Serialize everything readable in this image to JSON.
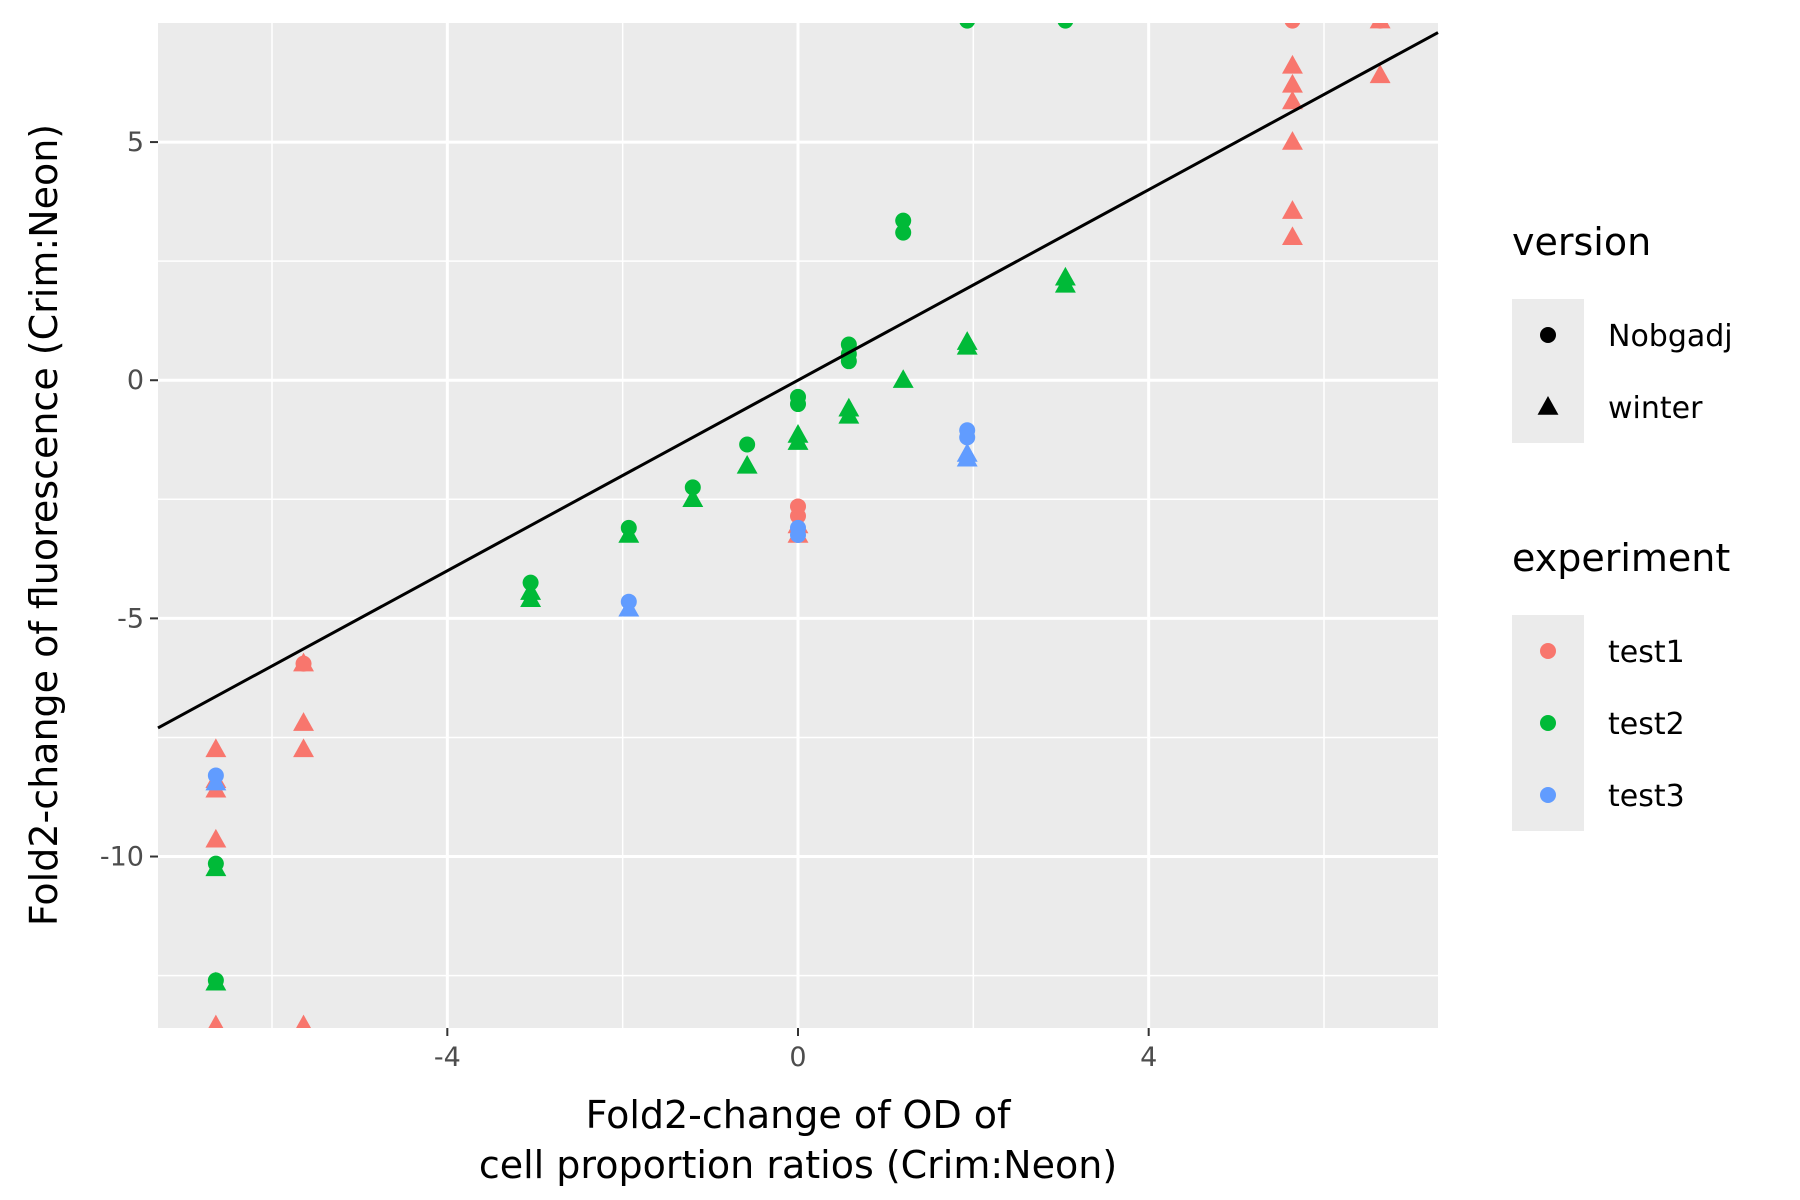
{
  "chart_data": {
    "type": "scatter",
    "xlabel_line1": "Fold2-change of OD of",
    "xlabel_line2": "cell proportion ratios (Crim:Neon)",
    "ylabel": "Fold2-change of fluorescence (Crim:Neon)",
    "xlim": [
      -7.3,
      7.3
    ],
    "ylim": [
      -13.6,
      7.5
    ],
    "x_ticks": [
      -4,
      0,
      4
    ],
    "x_tick_labels": [
      "-4",
      "0",
      "4"
    ],
    "y_ticks": [
      -10,
      -5,
      0,
      5
    ],
    "y_tick_labels": [
      "-10",
      "-5",
      "0",
      "5"
    ],
    "x_minor": [
      -6,
      -2,
      2,
      6
    ],
    "y_minor": [
      -12.5,
      -7.5,
      -2.5,
      2.5
    ],
    "grid": true,
    "background": "#ebebeb",
    "reference_line": {
      "slope": 1,
      "intercept": 0,
      "color": "#000000"
    },
    "legend_placement": "right",
    "legends": [
      {
        "title": "version",
        "kind": "shape",
        "entries": [
          {
            "label": "Nobgadj",
            "shape": "circle"
          },
          {
            "label": "winter",
            "shape": "triangle"
          }
        ]
      },
      {
        "title": "experiment",
        "kind": "color",
        "entries": [
          {
            "label": "test1",
            "color": "#f8766d"
          },
          {
            "label": "test2",
            "color": "#00ba38"
          },
          {
            "label": "test3",
            "color": "#619cff"
          }
        ]
      }
    ],
    "points": [
      {
        "x": 5.64,
        "y": 7.55,
        "experiment": "test1",
        "version": "Nobgadj"
      },
      {
        "x": 6.64,
        "y": 7.55,
        "experiment": "test1",
        "version": "Nobgadj"
      },
      {
        "x": 6.64,
        "y": 7.55,
        "experiment": "test1",
        "version": "winter"
      },
      {
        "x": 5.64,
        "y": 6.6,
        "experiment": "test1",
        "version": "winter"
      },
      {
        "x": 5.64,
        "y": 6.2,
        "experiment": "test1",
        "version": "winter"
      },
      {
        "x": 5.64,
        "y": 5.85,
        "experiment": "test1",
        "version": "winter"
      },
      {
        "x": 6.64,
        "y": 6.4,
        "experiment": "test1",
        "version": "winter"
      },
      {
        "x": 5.64,
        "y": 5.0,
        "experiment": "test1",
        "version": "winter"
      },
      {
        "x": 5.64,
        "y": 3.55,
        "experiment": "test1",
        "version": "winter"
      },
      {
        "x": 5.64,
        "y": 3.0,
        "experiment": "test1",
        "version": "winter"
      },
      {
        "x": 0.0,
        "y": -2.65,
        "experiment": "test1",
        "version": "Nobgadj"
      },
      {
        "x": 0.0,
        "y": -2.85,
        "experiment": "test1",
        "version": "Nobgadj"
      },
      {
        "x": 0.0,
        "y": -3.05,
        "experiment": "test1",
        "version": "winter"
      },
      {
        "x": 0.0,
        "y": -3.25,
        "experiment": "test1",
        "version": "winter"
      },
      {
        "x": -5.64,
        "y": -5.95,
        "experiment": "test1",
        "version": "Nobgadj"
      },
      {
        "x": -5.64,
        "y": -5.95,
        "experiment": "test1",
        "version": "winter"
      },
      {
        "x": -5.64,
        "y": -7.2,
        "experiment": "test1",
        "version": "winter"
      },
      {
        "x": -5.64,
        "y": -7.75,
        "experiment": "test1",
        "version": "winter"
      },
      {
        "x": -6.64,
        "y": -7.75,
        "experiment": "test1",
        "version": "winter"
      },
      {
        "x": -6.64,
        "y": -8.4,
        "experiment": "test1",
        "version": "winter"
      },
      {
        "x": -6.64,
        "y": -8.6,
        "experiment": "test1",
        "version": "winter"
      },
      {
        "x": -6.64,
        "y": -9.65,
        "experiment": "test1",
        "version": "winter"
      },
      {
        "x": -6.64,
        "y": -13.55,
        "experiment": "test1",
        "version": "winter"
      },
      {
        "x": -5.64,
        "y": -13.55,
        "experiment": "test1",
        "version": "winter"
      },
      {
        "x": 1.93,
        "y": 7.55,
        "experiment": "test2",
        "version": "Nobgadj"
      },
      {
        "x": 3.05,
        "y": 7.55,
        "experiment": "test2",
        "version": "Nobgadj"
      },
      {
        "x": 1.2,
        "y": 3.35,
        "experiment": "test2",
        "version": "Nobgadj"
      },
      {
        "x": 1.2,
        "y": 3.1,
        "experiment": "test2",
        "version": "Nobgadj"
      },
      {
        "x": 3.05,
        "y": 2.15,
        "experiment": "test2",
        "version": "winter"
      },
      {
        "x": 3.05,
        "y": 2.0,
        "experiment": "test2",
        "version": "winter"
      },
      {
        "x": 1.93,
        "y": 0.8,
        "experiment": "test2",
        "version": "winter"
      },
      {
        "x": 1.93,
        "y": 0.7,
        "experiment": "test2",
        "version": "winter"
      },
      {
        "x": 0.58,
        "y": 0.75,
        "experiment": "test2",
        "version": "Nobgadj"
      },
      {
        "x": 0.58,
        "y": 0.55,
        "experiment": "test2",
        "version": "Nobgadj"
      },
      {
        "x": 0.58,
        "y": 0.4,
        "experiment": "test2",
        "version": "Nobgadj"
      },
      {
        "x": 1.2,
        "y": 0.0,
        "experiment": "test2",
        "version": "winter"
      },
      {
        "x": 0.58,
        "y": -0.6,
        "experiment": "test2",
        "version": "winter"
      },
      {
        "x": 0.58,
        "y": -0.75,
        "experiment": "test2",
        "version": "winter"
      },
      {
        "x": 0.0,
        "y": -0.35,
        "experiment": "test2",
        "version": "Nobgadj"
      },
      {
        "x": 0.0,
        "y": -0.5,
        "experiment": "test2",
        "version": "Nobgadj"
      },
      {
        "x": 0.0,
        "y": -1.15,
        "experiment": "test2",
        "version": "winter"
      },
      {
        "x": 0.0,
        "y": -1.3,
        "experiment": "test2",
        "version": "winter"
      },
      {
        "x": -0.58,
        "y": -1.35,
        "experiment": "test2",
        "version": "Nobgadj"
      },
      {
        "x": -0.58,
        "y": -1.8,
        "experiment": "test2",
        "version": "winter"
      },
      {
        "x": -1.2,
        "y": -2.25,
        "experiment": "test2",
        "version": "Nobgadj"
      },
      {
        "x": -1.2,
        "y": -2.5,
        "experiment": "test2",
        "version": "winter"
      },
      {
        "x": -1.93,
        "y": -3.1,
        "experiment": "test2",
        "version": "Nobgadj"
      },
      {
        "x": -1.93,
        "y": -3.25,
        "experiment": "test2",
        "version": "winter"
      },
      {
        "x": -3.05,
        "y": -4.25,
        "experiment": "test2",
        "version": "Nobgadj"
      },
      {
        "x": -3.05,
        "y": -4.45,
        "experiment": "test2",
        "version": "winter"
      },
      {
        "x": -3.05,
        "y": -4.6,
        "experiment": "test2",
        "version": "winter"
      },
      {
        "x": -6.64,
        "y": -10.15,
        "experiment": "test2",
        "version": "Nobgadj"
      },
      {
        "x": -6.64,
        "y": -10.25,
        "experiment": "test2",
        "version": "winter"
      },
      {
        "x": -6.64,
        "y": -12.6,
        "experiment": "test2",
        "version": "Nobgadj"
      },
      {
        "x": -6.64,
        "y": -12.65,
        "experiment": "test2",
        "version": "winter"
      },
      {
        "x": 1.93,
        "y": -1.05,
        "experiment": "test3",
        "version": "Nobgadj"
      },
      {
        "x": 1.93,
        "y": -1.2,
        "experiment": "test3",
        "version": "Nobgadj"
      },
      {
        "x": 1.93,
        "y": -1.55,
        "experiment": "test3",
        "version": "winter"
      },
      {
        "x": 1.93,
        "y": -1.65,
        "experiment": "test3",
        "version": "winter"
      },
      {
        "x": 0.0,
        "y": -3.1,
        "experiment": "test3",
        "version": "Nobgadj"
      },
      {
        "x": 0.0,
        "y": -3.25,
        "experiment": "test3",
        "version": "Nobgadj"
      },
      {
        "x": -1.93,
        "y": -4.65,
        "experiment": "test3",
        "version": "Nobgadj"
      },
      {
        "x": -1.93,
        "y": -4.8,
        "experiment": "test3",
        "version": "winter"
      },
      {
        "x": -6.64,
        "y": -8.3,
        "experiment": "test3",
        "version": "Nobgadj"
      },
      {
        "x": -6.64,
        "y": -8.45,
        "experiment": "test3",
        "version": "winter"
      }
    ]
  }
}
